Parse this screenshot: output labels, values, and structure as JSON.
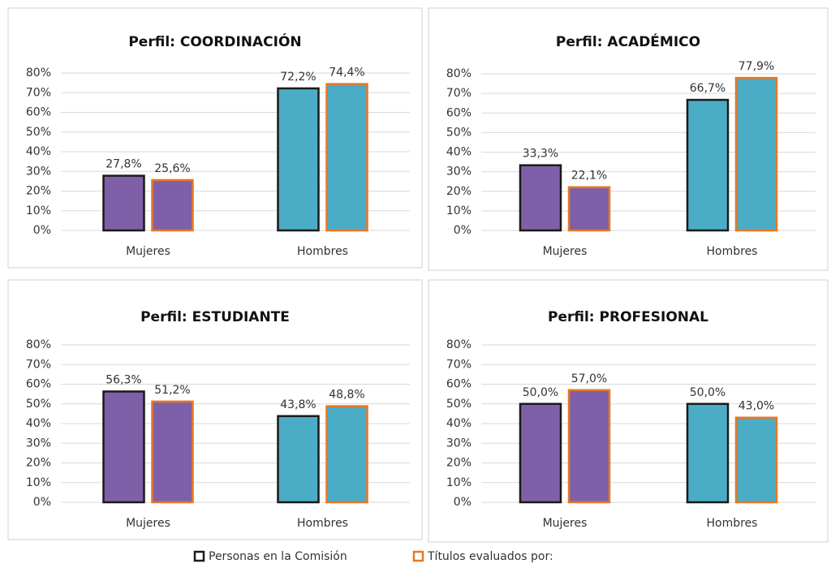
{
  "chart_data": [
    {
      "type": "bar",
      "title": "Perfil: COORDINACIÓN",
      "categories": [
        "Mujeres",
        "Hombres"
      ],
      "category_colors": [
        "#7f60a8",
        "#4bacc6"
      ],
      "series": [
        {
          "values": [
            27.8,
            72.2
          ],
          "value_labels": [
            "27,8%",
            "72,2%"
          ]
        },
        {
          "values": [
            25.6,
            74.4
          ],
          "value_labels": [
            "25,6%",
            "74,4%"
          ]
        }
      ],
      "ylim": [
        0,
        80
      ],
      "yticks": [
        {
          "value": 0,
          "label": "0%"
        },
        {
          "value": 10,
          "label": "10%"
        },
        {
          "value": 20,
          "label": "20%"
        },
        {
          "value": 30,
          "label": "30%"
        },
        {
          "value": 40,
          "label": "40%"
        },
        {
          "value": 50,
          "label": "50%"
        },
        {
          "value": 60,
          "label": "60%"
        },
        {
          "value": 70,
          "label": "70%"
        },
        {
          "value": 80,
          "label": "80%"
        }
      ],
      "grid": true
    },
    {
      "type": "bar",
      "title": "Perfil: ACADÉMICO",
      "categories": [
        "Mujeres",
        "Hombres"
      ],
      "category_colors": [
        "#7f60a8",
        "#4bacc6"
      ],
      "series": [
        {
          "values": [
            33.3,
            66.7
          ],
          "value_labels": [
            "33,3%",
            "66,7%"
          ]
        },
        {
          "values": [
            22.1,
            77.9
          ],
          "value_labels": [
            "22,1%",
            "77,9%"
          ]
        }
      ],
      "ylim": [
        0,
        80
      ],
      "yticks": [
        {
          "value": 0,
          "label": "0%"
        },
        {
          "value": 10,
          "label": "10%"
        },
        {
          "value": 20,
          "label": "20%"
        },
        {
          "value": 30,
          "label": "30%"
        },
        {
          "value": 40,
          "label": "40%"
        },
        {
          "value": 50,
          "label": "50%"
        },
        {
          "value": 60,
          "label": "60%"
        },
        {
          "value": 70,
          "label": "70%"
        },
        {
          "value": 80,
          "label": "80%"
        }
      ],
      "grid": true
    },
    {
      "type": "bar",
      "title": "Perfil: ESTUDIANTE",
      "categories": [
        "Mujeres",
        "Hombres"
      ],
      "category_colors": [
        "#7f60a8",
        "#4bacc6"
      ],
      "series": [
        {
          "values": [
            56.3,
            43.8
          ],
          "value_labels": [
            "56,3%",
            "43,8%"
          ]
        },
        {
          "values": [
            51.2,
            48.8
          ],
          "value_labels": [
            "51,2%",
            "48,8%"
          ]
        }
      ],
      "ylim": [
        0,
        80
      ],
      "yticks": [
        {
          "value": 0,
          "label": "0%"
        },
        {
          "value": 10,
          "label": "10%"
        },
        {
          "value": 20,
          "label": "20%"
        },
        {
          "value": 30,
          "label": "30%"
        },
        {
          "value": 40,
          "label": "40%"
        },
        {
          "value": 50,
          "label": "50%"
        },
        {
          "value": 60,
          "label": "60%"
        },
        {
          "value": 70,
          "label": "70%"
        },
        {
          "value": 80,
          "label": "80%"
        }
      ],
      "grid": true
    },
    {
      "type": "bar",
      "title": "Perfil: PROFESIONAL",
      "categories": [
        "Mujeres",
        "Hombres"
      ],
      "category_colors": [
        "#7f60a8",
        "#4bacc6"
      ],
      "series": [
        {
          "values": [
            50.0,
            50.0
          ],
          "value_labels": [
            "50,0%",
            "50,0%"
          ]
        },
        {
          "values": [
            57.0,
            43.0
          ],
          "value_labels": [
            "57,0%",
            "43,0%"
          ]
        }
      ],
      "ylim": [
        0,
        80
      ],
      "yticks": [
        {
          "value": 0,
          "label": "0%"
        },
        {
          "value": 10,
          "label": "10%"
        },
        {
          "value": 20,
          "label": "20%"
        },
        {
          "value": 30,
          "label": "30%"
        },
        {
          "value": 40,
          "label": "40%"
        },
        {
          "value": 50,
          "label": "50%"
        },
        {
          "value": 60,
          "label": "60%"
        },
        {
          "value": 70,
          "label": "70%"
        },
        {
          "value": 80,
          "label": "80%"
        }
      ],
      "grid": true
    }
  ],
  "legend": [
    {
      "name": "Personas en la Comisión",
      "border": "#1a1a1a"
    },
    {
      "name": "Títulos evaluados por:",
      "border": "#e87722"
    }
  ]
}
